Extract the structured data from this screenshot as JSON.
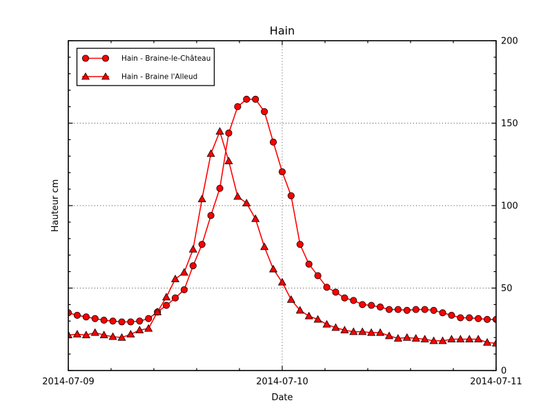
{
  "chart_data": {
    "type": "line",
    "title": "Hain",
    "xlabel": "Date",
    "ylabel": "Hauteur cm",
    "xtick_labels": [
      "2014-07-09",
      "2014-07-10",
      "2014-07-11"
    ],
    "ytick_labels": [
      "200",
      "150",
      "100",
      "50",
      "0"
    ],
    "ylim": [
      0,
      200
    ],
    "x_hours_range": [
      0,
      48
    ],
    "x_hours_step": 1,
    "grid": "dotted",
    "gridline_y_values": [
      50,
      100,
      150
    ],
    "gridline_x_hours": [
      24
    ],
    "legend_position": "upper-left",
    "line_color": "#ff0000",
    "marker_edge_color": "#1a0000",
    "series": [
      {
        "name": "Hain - Braine-le-Château",
        "marker": "circle",
        "color": "#ff0000",
        "values": [
          35,
          33.5,
          32.5,
          31.5,
          30.5,
          30,
          29.5,
          29.5,
          30,
          31.5,
          35.5,
          39.5,
          44,
          49,
          63.5,
          76.5,
          94,
          110.5,
          144,
          160,
          164.5,
          164.5,
          157,
          138.5,
          120.5,
          106,
          76.5,
          64.5,
          57.5,
          50.5,
          47.5,
          44,
          42.5,
          40,
          39.5,
          38.5,
          37,
          37,
          36.5,
          37,
          37,
          36.5,
          35,
          33.5,
          32,
          32,
          31.5,
          31,
          31
        ]
      },
      {
        "name": "Hain - Braine l'Alleud",
        "marker": "triangle",
        "color": "#ff0000",
        "values": [
          21.5,
          22,
          21.5,
          23,
          21.5,
          20.5,
          20,
          22,
          24.5,
          25.5,
          35.5,
          44.5,
          55.5,
          59.5,
          73.5,
          104,
          131.5,
          145,
          127,
          105.5,
          101.5,
          92,
          75,
          61.5,
          53.5,
          43,
          36.5,
          33,
          31,
          28,
          26,
          24.5,
          23.5,
          23.5,
          23,
          23,
          21,
          19.5,
          20,
          19.5,
          19,
          18,
          18,
          19,
          19,
          19,
          19,
          17,
          16.5
        ]
      }
    ]
  }
}
